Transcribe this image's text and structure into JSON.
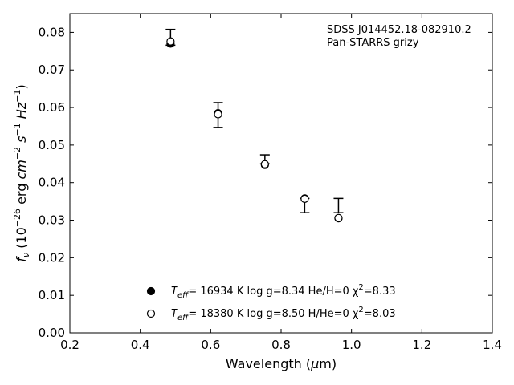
{
  "chart_data": {
    "type": "scatter",
    "xlabel": "Wavelength (μm)",
    "ylabel": "f_ν (10^-26 erg cm^-2 s^-1 Hz^-1)",
    "xlim": [
      0.2,
      1.4
    ],
    "ylim": [
      0.0,
      0.085
    ],
    "xticks": [
      "0.2",
      "0.4",
      "0.6",
      "0.8",
      "1.0",
      "1.2",
      "1.4"
    ],
    "yticks": [
      "0.00",
      "0.01",
      "0.02",
      "0.03",
      "0.04",
      "0.05",
      "0.06",
      "0.07",
      "0.08"
    ],
    "annotation": {
      "line1": "SDSS J014452.18-082910.2",
      "line2": "Pan-STARRS grizy"
    },
    "observed": {
      "x": [
        0.486,
        0.621,
        0.754,
        0.867,
        0.963
      ],
      "y": [
        0.0787,
        0.058,
        0.0462,
        0.0339,
        0.0339
      ],
      "err": [
        0.0021,
        0.0033,
        0.0012,
        0.0019,
        0.0019
      ]
    },
    "series": [
      {
        "marker": "filled",
        "x": [
          0.486,
          0.621,
          0.754,
          0.867,
          0.963
        ],
        "y": [
          0.077,
          0.0585,
          0.0447,
          0.0358,
          0.0305
        ]
      },
      {
        "marker": "open",
        "x": [
          0.486,
          0.621,
          0.754,
          0.867,
          0.963
        ],
        "y": [
          0.0776,
          0.0582,
          0.0449,
          0.0357,
          0.0306
        ]
      }
    ],
    "legend": [
      {
        "marker": "filled",
        "teff_label": "T",
        "teff_sub": "eff",
        "text": "= 16934 K  log g=8.34  He/H=0  χ",
        "chi_sup": "2",
        "chi_val": "=8.33"
      },
      {
        "marker": "open",
        "teff_label": "T",
        "teff_sub": "eff",
        "text": "= 18380 K  log g=8.50  H/He=0  χ",
        "chi_sup": "2",
        "chi_val": "=8.03"
      }
    ]
  }
}
